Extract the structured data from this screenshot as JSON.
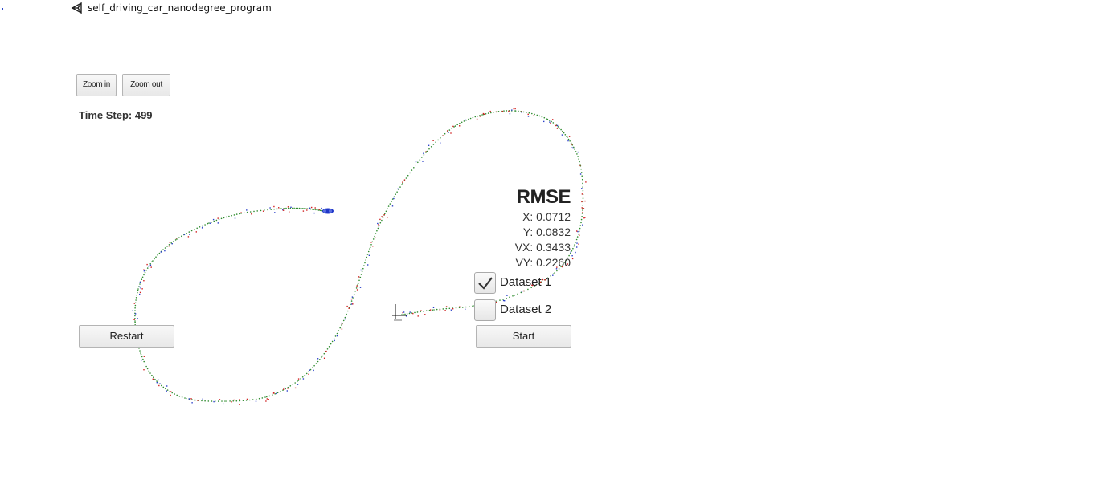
{
  "window": {
    "title": "self_driving_car_nanodegree_program",
    "icon": "unity-logo-icon"
  },
  "controls": {
    "zoom_in_label": "Zoom in",
    "zoom_out_label": "Zoom out",
    "restart_label": "Restart",
    "start_label": "Start"
  },
  "timestep": {
    "label": "Time Step:",
    "value": "499"
  },
  "rmse": {
    "title": "RMSE",
    "x": "X: 0.0712",
    "y": "Y: 0.0832",
    "vx": "VX: 0.3433",
    "vy": "VY: 0.2260"
  },
  "datasets": [
    {
      "label": "Dataset 1",
      "checked": true
    },
    {
      "label": "Dataset 2",
      "checked": false
    }
  ],
  "colors": {
    "trajectory": "#2e8b2e",
    "lidar": "#d02020",
    "radar": "#2a3fc9",
    "car": "#1f37c8"
  }
}
